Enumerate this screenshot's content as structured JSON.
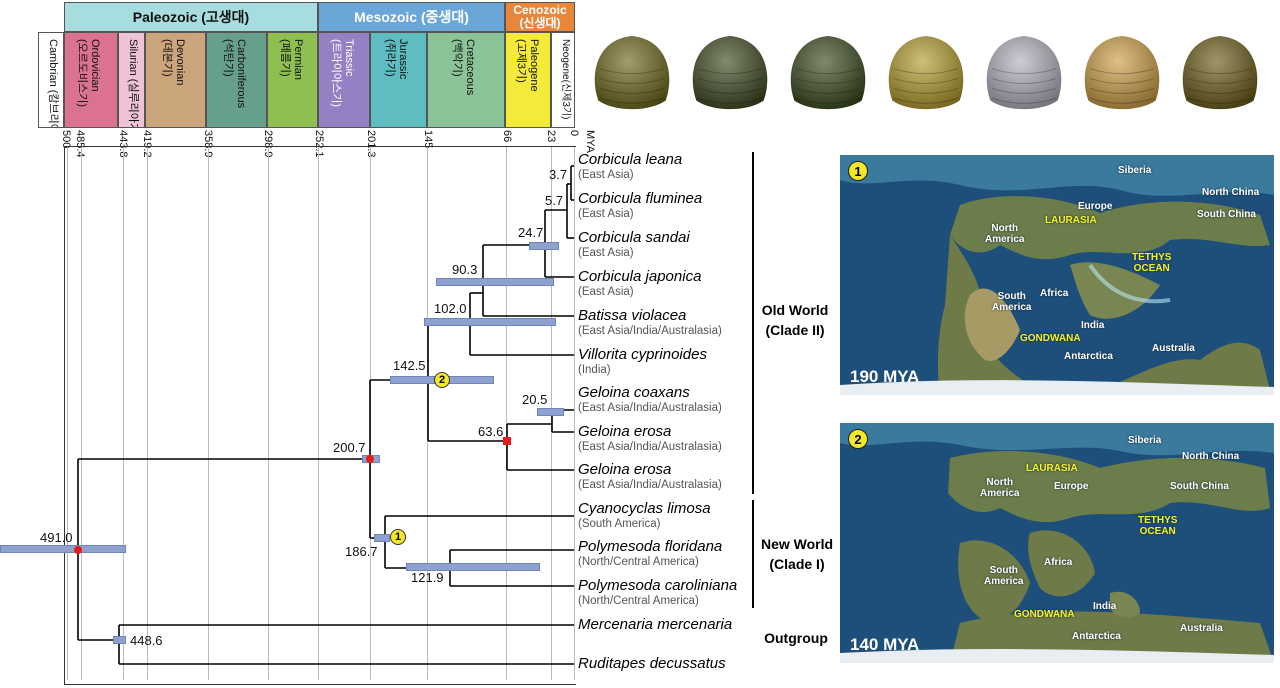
{
  "eras": [
    {
      "label": "Paleozoic (고생대)",
      "color": "#a8dde0"
    },
    {
      "label": "Mesozoic (중생대)",
      "color": "#6aa6d8"
    },
    {
      "label": "Cenozoic (신생대)",
      "color": "#e8863a"
    }
  ],
  "periods": [
    {
      "label": "Cambrian",
      "korean": "(캄브리아기)",
      "color": "#ffffff"
    },
    {
      "label": "Ordovician",
      "korean": "(오르도비스기)",
      "color": "#db7390"
    },
    {
      "label": "Silurian",
      "korean": "(실루리아기)",
      "color": "#efc3d6"
    },
    {
      "label": "Devonian",
      "korean": "(데본기)",
      "color": "#cba57b"
    },
    {
      "label": "Carboniferous",
      "korean": "(석탄기)",
      "color": "#67a08a"
    },
    {
      "label": "Permian",
      "korean": "(페름기)",
      "color": "#8fbf50"
    },
    {
      "label": "Triassic",
      "korean": "(트라이아스기)",
      "color": "#9680c4"
    },
    {
      "label": "Jurassic",
      "korean": "(쥐라기)",
      "color": "#5fbcc0"
    },
    {
      "label": "Cretaceous",
      "korean": "(백악기)",
      "color": "#8cc49a"
    },
    {
      "label": "Paleogene",
      "korean": "(고제3기)",
      "color": "#f4ea3a"
    },
    {
      "label": "Neogene",
      "korean": "(신제3기)",
      "color": "#ffffff"
    }
  ],
  "ticks": [
    "500",
    "485.4",
    "443.8",
    "419.2",
    "358.9",
    "298.9",
    "252.1",
    "201.3",
    "145",
    "66",
    "23",
    "0"
  ],
  "mya_label": "MYA",
  "species": [
    {
      "name": "Corbicula leana",
      "region": "(East Asia)"
    },
    {
      "name": "Corbicula fluminea",
      "region": "(East Asia)"
    },
    {
      "name": "Corbicula sandai",
      "region": "(East Asia)"
    },
    {
      "name": "Corbicula japonica",
      "region": "(East Asia)"
    },
    {
      "name": "Batissa violacea",
      "region": "(East Asia/India/Australasia)"
    },
    {
      "name": "Villorita cyprinoides",
      "region": "(India)"
    },
    {
      "name": "Geloina coaxans",
      "region": "(East Asia/India/Australasia)"
    },
    {
      "name": "Geloina erosa",
      "region": "(East Asia/India/Australasia)"
    },
    {
      "name": "Geloina erosa",
      "region": "(East Asia/India/Australasia)"
    },
    {
      "name": "Cyanocyclas limosa",
      "region": "(South America)"
    },
    {
      "name": "Polymesoda floridana",
      "region": "(North/Central America)"
    },
    {
      "name": "Polymesoda caroliniana",
      "region": "(North/Central America)"
    },
    {
      "name": "Mercenaria mercenaria",
      "region": ""
    },
    {
      "name": "Ruditapes decussatus",
      "region": ""
    }
  ],
  "node_ages": [
    "491.0",
    "448.6",
    "200.7",
    "186.7",
    "142.5",
    "121.9",
    "102.0",
    "90.3",
    "63.6",
    "24.7",
    "20.5",
    "5.7",
    "3.7"
  ],
  "node_markers": [
    "1",
    "2"
  ],
  "clades": {
    "old_world_line1": "Old World",
    "old_world_line2": "(Clade II)",
    "new_world_line1": "New World",
    "new_world_line2": "(Clade I)",
    "outgroup": "Outgroup"
  },
  "map1": {
    "number": "1",
    "age": "190 MYA",
    "labels": {
      "siberia": "Siberia",
      "north_china": "North China",
      "south_china": "South China",
      "europe": "Europe",
      "north_america": "North\nAmerica",
      "laurasia": "LAURASIA",
      "tethys": "TETHYS\nOCEAN",
      "south_america": "South\nAmerica",
      "africa": "Africa",
      "india": "India",
      "gondwana": "GONDWANA",
      "antarctica": "Antarctica",
      "australia": "Australia"
    }
  },
  "map2": {
    "number": "2",
    "age": "140 MYA",
    "labels": {
      "siberia": "Siberia",
      "north_china": "North China",
      "south_china": "South China",
      "europe": "Europe",
      "north_america": "North\nAmerica",
      "laurasia": "LAURASIA",
      "tethys": "TETHYS\nOCEAN",
      "south_america": "South\nAmerica",
      "africa": "Africa",
      "india": "India",
      "gondwana": "GONDWANA",
      "antarctica": "Antarctica",
      "australia": "Australia"
    }
  },
  "shell_colors": [
    "#6e6a1c",
    "#3f4a22",
    "#3b4a1e",
    "#b59d2e",
    "#b6b0bd",
    "#cf9f46",
    "#6b5e18"
  ]
}
